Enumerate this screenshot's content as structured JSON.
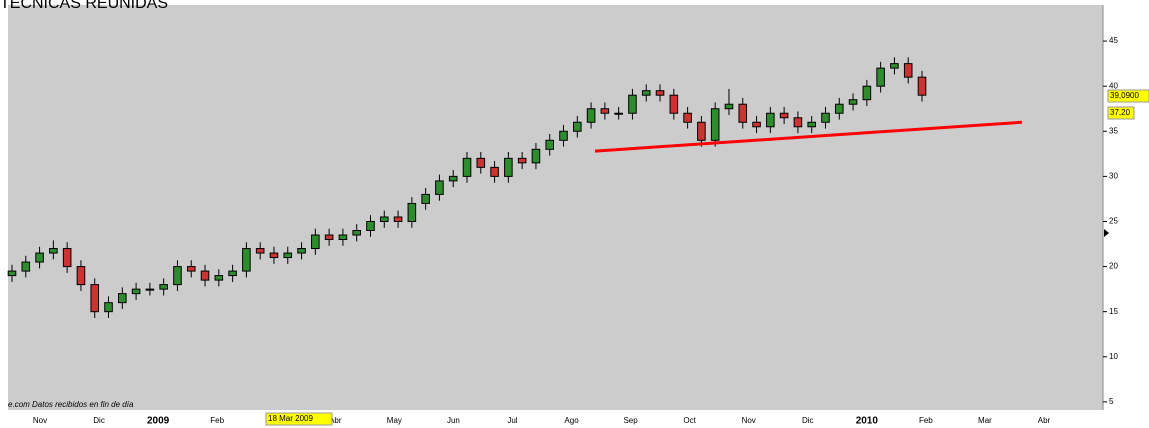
{
  "chart_data": {
    "type": "candlestick",
    "title": "TECNICAS REUNIDAS",
    "footer": "e.com  Datos recibidos en fin de día",
    "categories": [
      "Nov",
      "Dic",
      "2009",
      "Feb",
      "Mar",
      "Abr",
      "May",
      "Jun",
      "Jul",
      "Ago",
      "Sep",
      "Oct",
      "Nov",
      "Dic",
      "2010",
      "Feb",
      "Mar",
      "Abr"
    ],
    "ylim": [
      4.1,
      49
    ],
    "yticks": [
      5,
      10,
      15,
      20,
      25,
      30,
      35,
      40,
      45
    ],
    "up_color": "#2e8b2e",
    "down_color": "#cc3333",
    "open": [
      19,
      19.5,
      20.5,
      21.5,
      22,
      20,
      18,
      15,
      16,
      17,
      17.5,
      17.5,
      18,
      20,
      19.5,
      18.5,
      19,
      19.5,
      22,
      21.5,
      21,
      21.5,
      22,
      23.5,
      23,
      23.5,
      24,
      25,
      25.5,
      25,
      27,
      28,
      29.5,
      30,
      32,
      31,
      30,
      32,
      31.5,
      33,
      34,
      35,
      36,
      37.5,
      37,
      37,
      39,
      39.5,
      39,
      37,
      36,
      34,
      37.5,
      38,
      36,
      35.5,
      37,
      36.5,
      35.5,
      36,
      37,
      38,
      38.5,
      40,
      42,
      42.5,
      41
    ],
    "high": [
      20.2,
      21.2,
      22.2,
      22.9,
      22.7,
      20.7,
      18.7,
      16.7,
      17.7,
      18.2,
      18.2,
      18.7,
      20.7,
      20.7,
      20.2,
      19.7,
      20.2,
      22.7,
      22.7,
      22.2,
      22.2,
      22.7,
      24.2,
      24.2,
      24.2,
      24.7,
      25.7,
      26.2,
      26.2,
      27.7,
      28.7,
      30.2,
      30.7,
      32.7,
      32.7,
      31.7,
      32.7,
      32.7,
      33.7,
      34.7,
      35.7,
      36.7,
      38.2,
      38.2,
      37.7,
      39.7,
      40.2,
      40.2,
      39.7,
      37.7,
      36.7,
      38.2,
      39.7,
      38.7,
      36.7,
      37.7,
      37.7,
      37.2,
      36.7,
      37.7,
      38.7,
      39.2,
      40.7,
      42.7,
      43.2,
      43.2,
      41.7
    ],
    "low": [
      18.3,
      18.8,
      19.8,
      20.8,
      19.3,
      17.3,
      14.3,
      14.3,
      15.3,
      16.3,
      16.8,
      16.8,
      17.3,
      18.8,
      17.8,
      17.8,
      18.3,
      18.8,
      20.8,
      20.3,
      20.3,
      20.8,
      21.3,
      22.3,
      22.3,
      22.8,
      23.3,
      24.3,
      24.3,
      24.3,
      26.3,
      27.3,
      28.8,
      29.3,
      30.3,
      29.3,
      29.3,
      30.8,
      30.8,
      32.3,
      33.3,
      34.3,
      35.3,
      36.3,
      36.3,
      36.3,
      38.3,
      38.3,
      36.3,
      35.3,
      33.3,
      33.3,
      36.8,
      35.3,
      34.8,
      34.8,
      35.8,
      34.8,
      34.8,
      35.3,
      36.3,
      37.3,
      37.8,
      39.3,
      41.3,
      40.3,
      38.3
    ],
    "close": [
      19.5,
      20.5,
      21.5,
      22,
      20,
      18,
      15,
      16,
      17,
      17.5,
      17.5,
      18,
      20,
      19.5,
      18.5,
      19,
      19.5,
      22,
      21.5,
      21,
      21.5,
      22,
      23.5,
      23,
      23.5,
      24,
      25,
      25.5,
      25,
      27,
      28,
      29.5,
      30,
      32,
      31,
      30,
      32,
      31.5,
      33,
      34,
      35,
      36,
      37.5,
      37,
      37,
      39,
      39.5,
      39,
      37,
      36,
      34,
      37.5,
      38,
      36,
      35.5,
      37,
      36.5,
      35.5,
      36,
      37,
      38,
      38.5,
      40,
      42,
      42.5,
      41,
      39
    ],
    "trendline": {
      "values": [
        32.8,
        36.0
      ],
      "color": "#ff0000"
    },
    "annotations": [
      "18 Mar 2009",
      "39,0900",
      "37,20"
    ]
  }
}
